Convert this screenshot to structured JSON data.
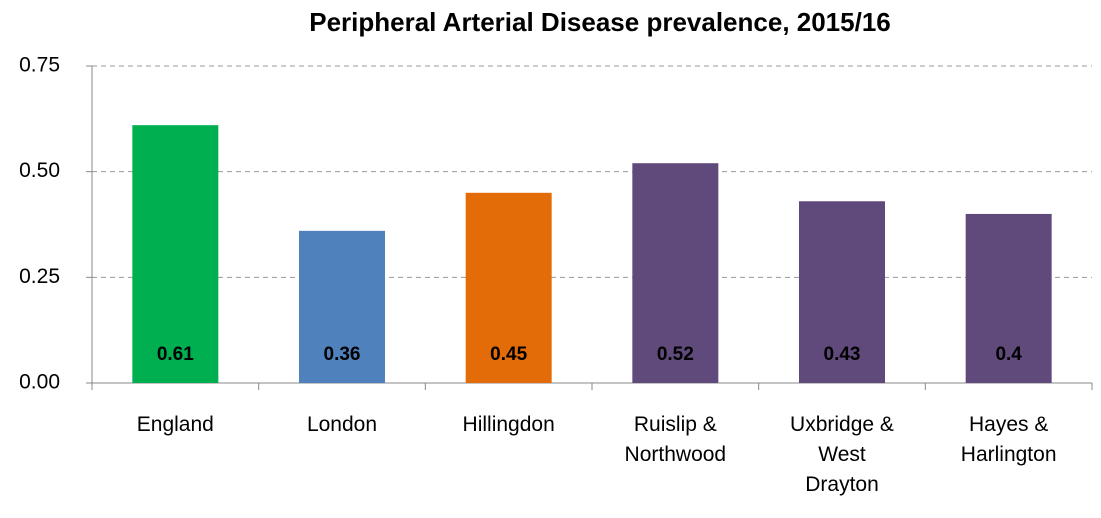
{
  "chart_data": {
    "type": "bar",
    "title": "Peripheral Arterial Disease prevalence, 2015/16",
    "categories": [
      "England",
      "London",
      "Hillingdon",
      "Ruislip & Northwood",
      "Uxbridge & West Drayton",
      "Hayes & Harlington"
    ],
    "values": [
      0.61,
      0.36,
      0.45,
      0.52,
      0.43,
      0.4
    ],
    "colors": [
      "#00b050",
      "#4f81bd",
      "#e36c09",
      "#604a7b",
      "#604a7b",
      "#604a7b"
    ],
    "value_label_colors": [
      "#000000",
      "#000000",
      "#000000",
      "#ffffff",
      "#ffffff",
      "#ffffff"
    ],
    "ylim": [
      0,
      0.75
    ],
    "yticks": [
      {
        "value": 0,
        "label": "0.00"
      },
      {
        "value": 0.25,
        "label": "0.25"
      },
      {
        "value": 0.5,
        "label": "0.50"
      },
      {
        "value": 0.75,
        "label": "0.75"
      }
    ],
    "grid": true
  }
}
